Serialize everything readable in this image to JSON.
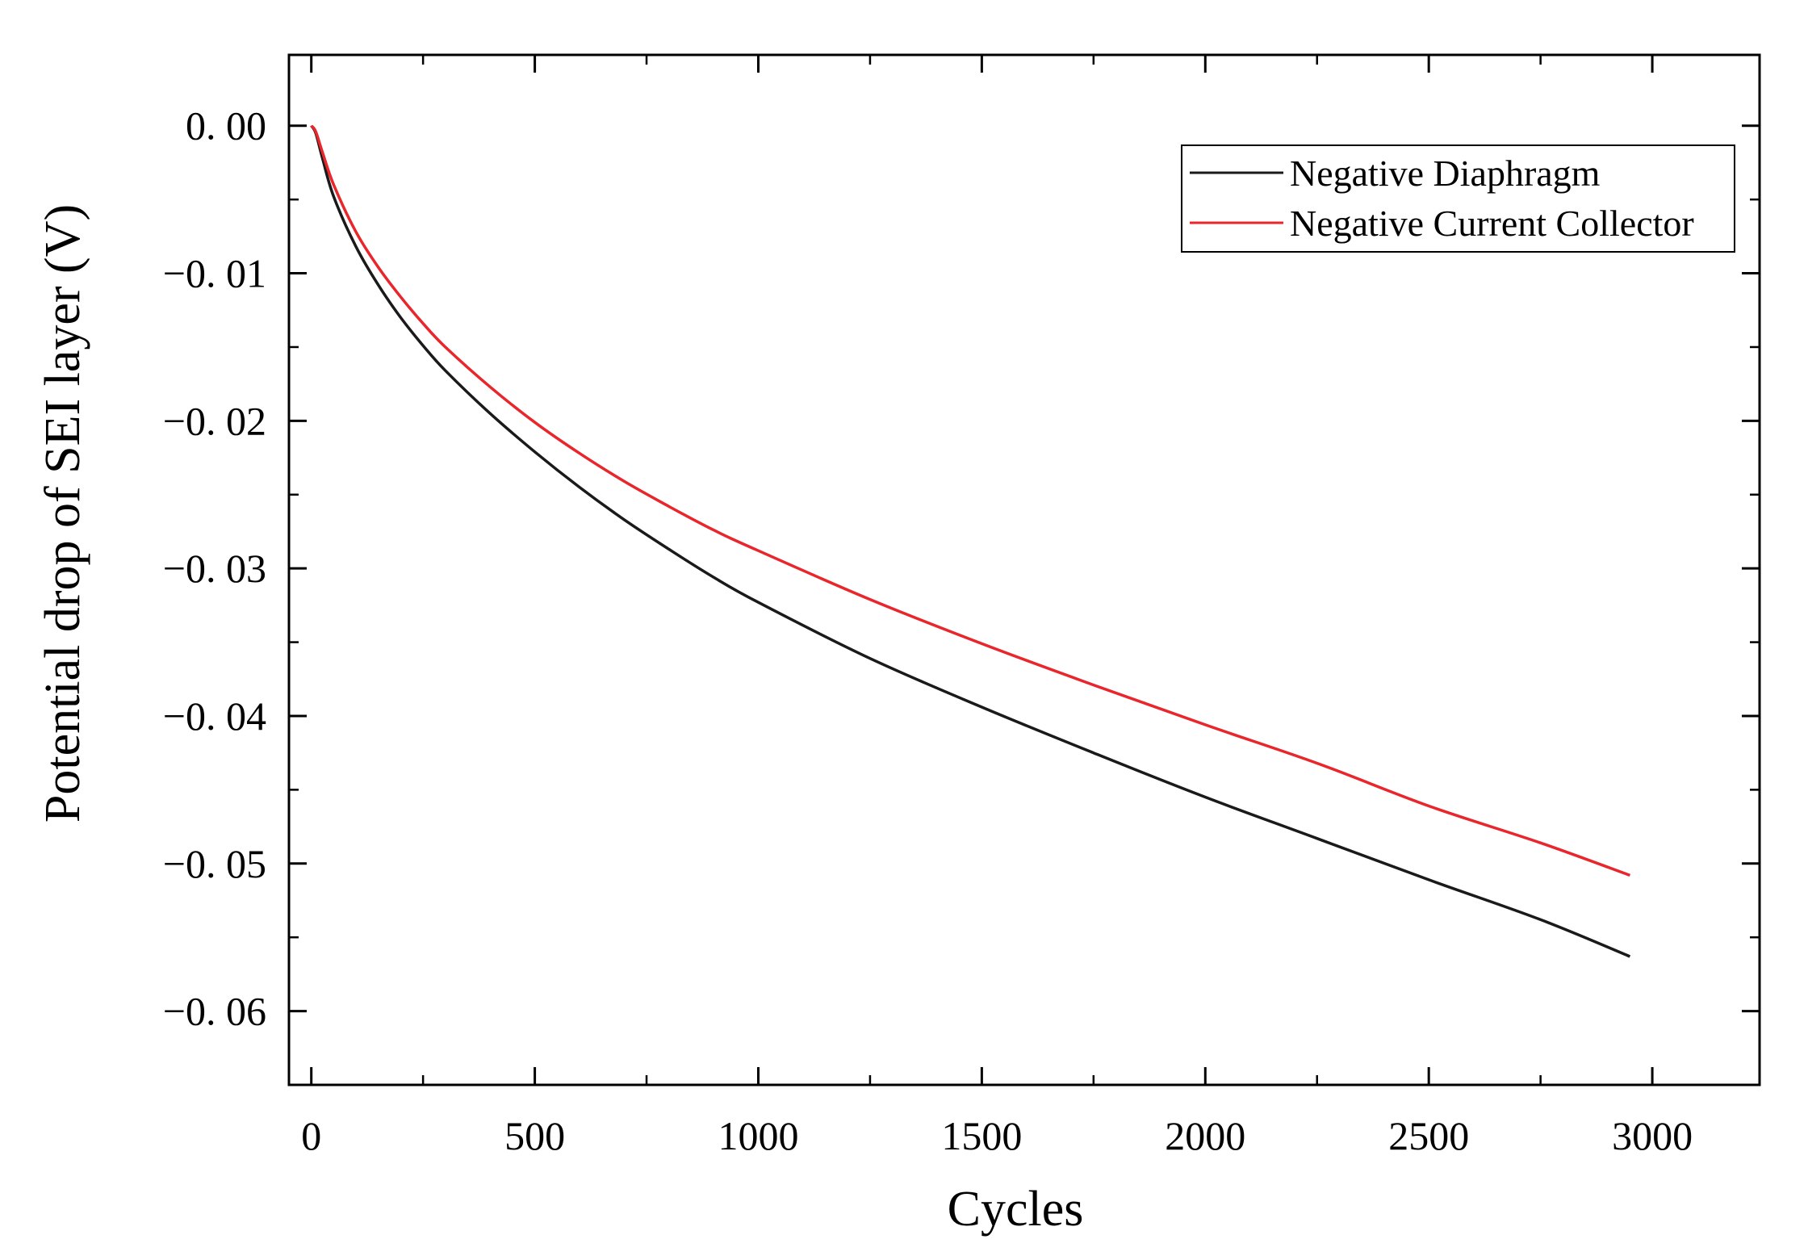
{
  "chart_data": {
    "type": "line",
    "title": "",
    "xlabel": "Cycles",
    "ylabel": "Potential drop of SEI layer (V)",
    "xlim": [
      -50,
      3240
    ],
    "ylim": [
      -0.065,
      0.0048
    ],
    "x_ticks": [
      0,
      500,
      1000,
      1500,
      2000,
      2500,
      3000
    ],
    "x_tick_labels": [
      "0",
      "500",
      "1000",
      "1500",
      "2000",
      "2500",
      "3000"
    ],
    "x_minor_step": 250,
    "y_ticks": [
      0.0,
      -0.01,
      -0.02,
      -0.03,
      -0.04,
      -0.05,
      -0.06
    ],
    "y_tick_labels": [
      "0. 00",
      "−0. 01",
      "−0. 02",
      "−0. 03",
      "−0. 04",
      "−0. 05",
      "−0. 06"
    ],
    "y_minor_step": 0.005,
    "grid": false,
    "legend_position": "top-right",
    "x": [
      0,
      10,
      25,
      50,
      100,
      150,
      200,
      250,
      300,
      400,
      500,
      600,
      700,
      800,
      900,
      1000,
      1250,
      1500,
      1750,
      2000,
      2250,
      2500,
      2750,
      2950
    ],
    "series": [
      {
        "name": "Negative Diaphragm",
        "color": "#1a1a1a",
        "values": [
          0.0,
          -0.0005,
          -0.0022,
          -0.0048,
          -0.0082,
          -0.0108,
          -0.013,
          -0.0149,
          -0.0166,
          -0.0195,
          -0.0221,
          -0.0245,
          -0.0267,
          -0.0287,
          -0.0306,
          -0.0323,
          -0.0361,
          -0.0394,
          -0.0425,
          -0.0455,
          -0.0483,
          -0.0511,
          -0.0538,
          -0.0563
        ]
      },
      {
        "name": "Negative Current Collector",
        "color": "#e8262c",
        "values": [
          0.0,
          -0.0004,
          -0.0018,
          -0.004,
          -0.0072,
          -0.0096,
          -0.0116,
          -0.0134,
          -0.015,
          -0.0177,
          -0.0201,
          -0.0222,
          -0.0241,
          -0.0258,
          -0.0274,
          -0.0288,
          -0.0321,
          -0.0351,
          -0.0379,
          -0.0406,
          -0.0432,
          -0.0461,
          -0.0486,
          -0.0508
        ]
      }
    ]
  }
}
